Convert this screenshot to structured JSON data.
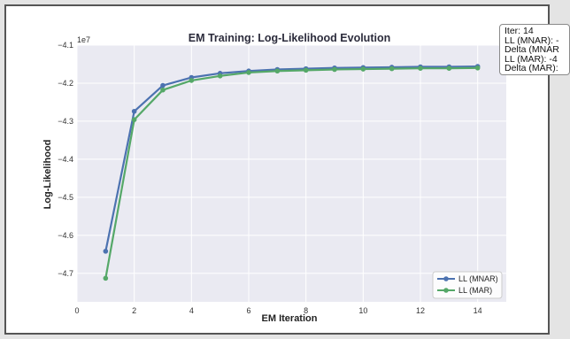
{
  "chart_data": {
    "type": "line",
    "title": "EM Training: Log-Likelihood Evolution",
    "xlabel": "EM Iteration",
    "ylabel": "Log-Likelihood",
    "offset_label": "1e7",
    "x": [
      1,
      2,
      3,
      4,
      5,
      6,
      7,
      8,
      9,
      10,
      11,
      12,
      13,
      14
    ],
    "xlim": [
      0,
      15
    ],
    "ylim": [
      -4.775,
      -4.1
    ],
    "xticks": [
      "0",
      "2",
      "4",
      "6",
      "8",
      "10",
      "12",
      "14"
    ],
    "xtick_values": [
      0,
      2,
      4,
      6,
      8,
      10,
      12,
      14
    ],
    "yticks": [
      "−4.1",
      "−4.2",
      "−4.3",
      "−4.4",
      "−4.5",
      "−4.6",
      "−4.7"
    ],
    "ytick_values": [
      -4.1,
      -4.2,
      -4.3,
      -4.4,
      -4.5,
      -4.6,
      -4.7
    ],
    "grid": true,
    "legend_position": "bottom-right",
    "series": [
      {
        "name": "LL (MNAR)",
        "color": "#4c72b0",
        "values": [
          -4.642,
          -4.274,
          -4.206,
          -4.185,
          -4.174,
          -4.168,
          -4.164,
          -4.162,
          -4.16,
          -4.159,
          -4.158,
          -4.157,
          -4.157,
          -4.156
        ]
      },
      {
        "name": "LL (MAR)",
        "color": "#55a868",
        "values": [
          -4.713,
          -4.296,
          -4.218,
          -4.193,
          -4.181,
          -4.172,
          -4.168,
          -4.166,
          -4.164,
          -4.163,
          -4.162,
          -4.161,
          -4.161,
          -4.16
        ]
      }
    ]
  },
  "info_box": {
    "line1": "Iter: 14",
    "line2": "LL (MNAR): -",
    "line3": "Delta (MNAR",
    "line4": "LL (MAR): -4",
    "line5": "Delta (MAR):"
  },
  "colors": {
    "plot_background": "#eaeaf2",
    "grid": "#ffffff",
    "frame_border": "#555555"
  }
}
